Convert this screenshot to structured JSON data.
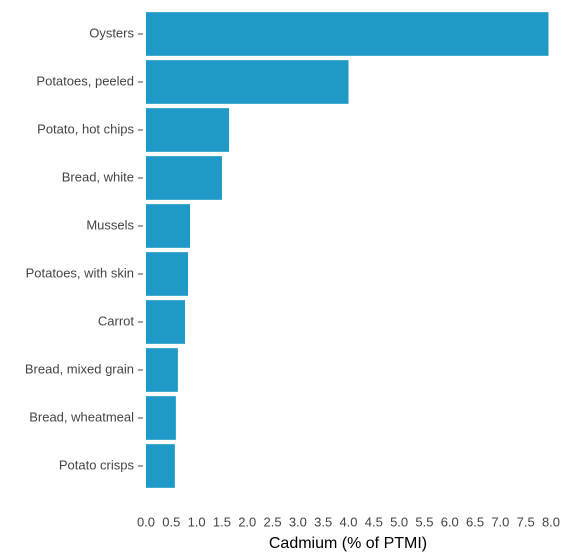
{
  "chart_data": {
    "type": "bar",
    "orientation": "horizontal",
    "x_label": "Cadmium (% of PTMI)",
    "categories": [
      "Oysters",
      "Potatoes, peeled",
      "Potato, hot chips",
      "Bread, white",
      "Mussels",
      "Potatoes, with skin",
      "Carrot",
      "Bread, mixed grain",
      "Bread, wheatmeal",
      "Potato crisps"
    ],
    "values": [
      7.95,
      4.0,
      1.64,
      1.5,
      0.87,
      0.83,
      0.77,
      0.63,
      0.59,
      0.57
    ],
    "color": "#1f9ac6",
    "xlim": [
      0,
      8
    ],
    "xticks": [
      {
        "value": 0,
        "label": "0.0"
      },
      0.5,
      {
        "value": 1,
        "label": "1.0"
      },
      1.5,
      {
        "value": 2,
        "label": "2.0"
      },
      2.5,
      {
        "value": 3,
        "label": "3.0"
      },
      3.5,
      {
        "value": 4,
        "label": "4.0"
      },
      4.5,
      {
        "value": 5,
        "label": "5.0"
      },
      5.5,
      {
        "value": 6,
        "label": "6.0"
      },
      6.5,
      {
        "value": 7,
        "label": "7.0"
      },
      7.5,
      {
        "value": 8,
        "label": "8.0"
      }
    ],
    "grid": false
  }
}
